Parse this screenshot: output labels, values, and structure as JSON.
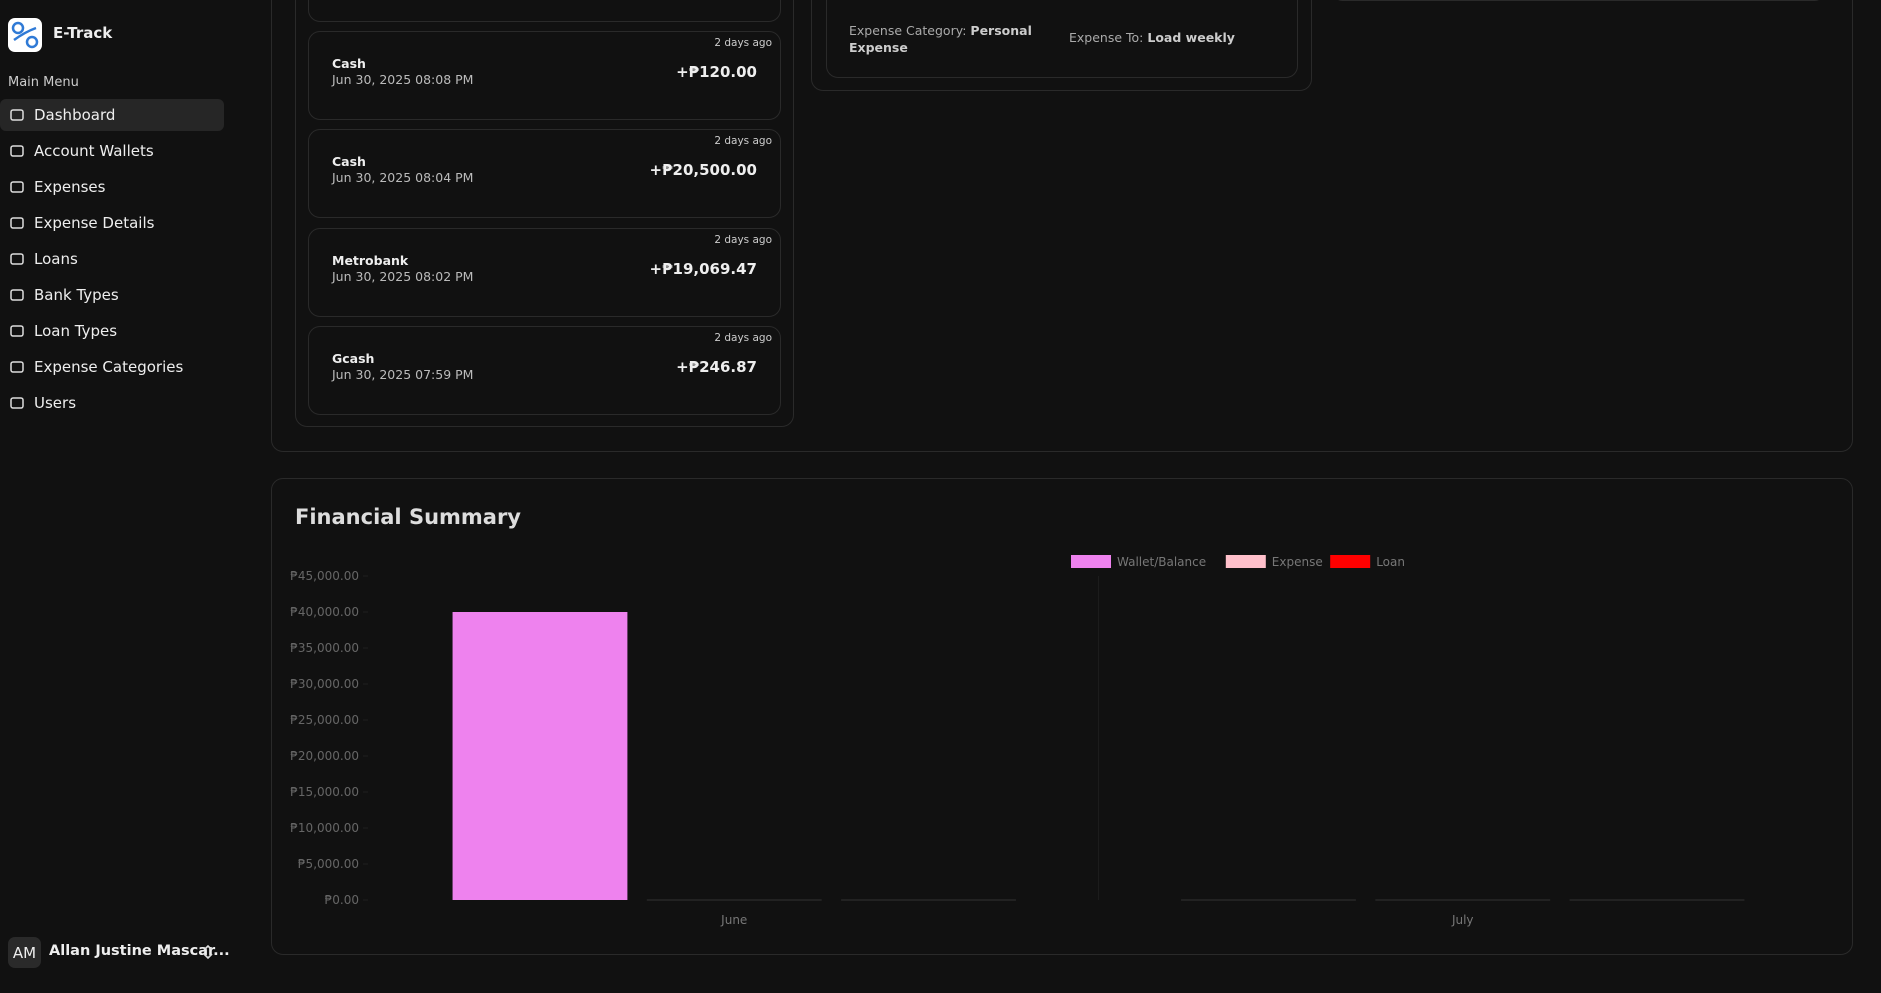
{
  "sidebar": {
    "app_name": "E-Track",
    "menu_label": "Main Menu",
    "items": [
      "Dashboard",
      "Account Wallets",
      "Expenses",
      "Expense Details",
      "Loans",
      "Bank Types",
      "Loan Types",
      "Expense Categories",
      "Users"
    ],
    "user": {
      "initials": "AM",
      "name": "Allan Justine Mascar..."
    }
  },
  "transactions": [
    {
      "age": "2 days ago",
      "wallet": "Cash",
      "date": "Jun 30, 2025 08:08 PM",
      "amount": "+₱120.00"
    },
    {
      "age": "2 days ago",
      "wallet": "Cash",
      "date": "Jun 30, 2025 08:04 PM",
      "amount": "+₱20,500.00"
    },
    {
      "age": "2 days ago",
      "wallet": "Metrobank",
      "date": "Jun 30, 2025 08:02 PM",
      "amount": "+₱19,069.47"
    },
    {
      "age": "2 days ago",
      "wallet": "Gcash",
      "date": "Jun 30, 2025 07:59 PM",
      "amount": "+₱246.87"
    }
  ],
  "expense_card": {
    "category_label": "Expense Category:",
    "category": "Personal Expense",
    "to_label": "Expense To:",
    "to": "Load weekly"
  },
  "financial_summary": {
    "title": "Financial Summary",
    "chart_data": {
      "type": "bar",
      "categories": [
        "June",
        "July"
      ],
      "series": [
        {
          "name": "Wallet/Balance",
          "color": "#ee82ee",
          "values": [
            40000,
            0
          ]
        },
        {
          "name": "Expense",
          "color": "#ffc0cb",
          "values": [
            0,
            0
          ]
        },
        {
          "name": "Loan",
          "color": "#ff0000",
          "values": [
            0,
            0
          ]
        }
      ],
      "ylim": [
        0,
        45000
      ],
      "yticks": [
        {
          "value": 0,
          "label": "₱0.00"
        },
        {
          "value": 5000,
          "label": "₱5,000.00"
        },
        {
          "value": 10000,
          "label": "₱10,000.00"
        },
        {
          "value": 15000,
          "label": "₱15,000.00"
        },
        {
          "value": 20000,
          "label": "₱20,000.00"
        },
        {
          "value": 25000,
          "label": "₱25,000.00"
        },
        {
          "value": 30000,
          "label": "₱30,000.00"
        },
        {
          "value": 35000,
          "label": "₱35,000.00"
        },
        {
          "value": 40000,
          "label": "₱40,000.00"
        },
        {
          "value": 45000,
          "label": "₱45,000.00"
        }
      ],
      "legend": "top"
    }
  }
}
